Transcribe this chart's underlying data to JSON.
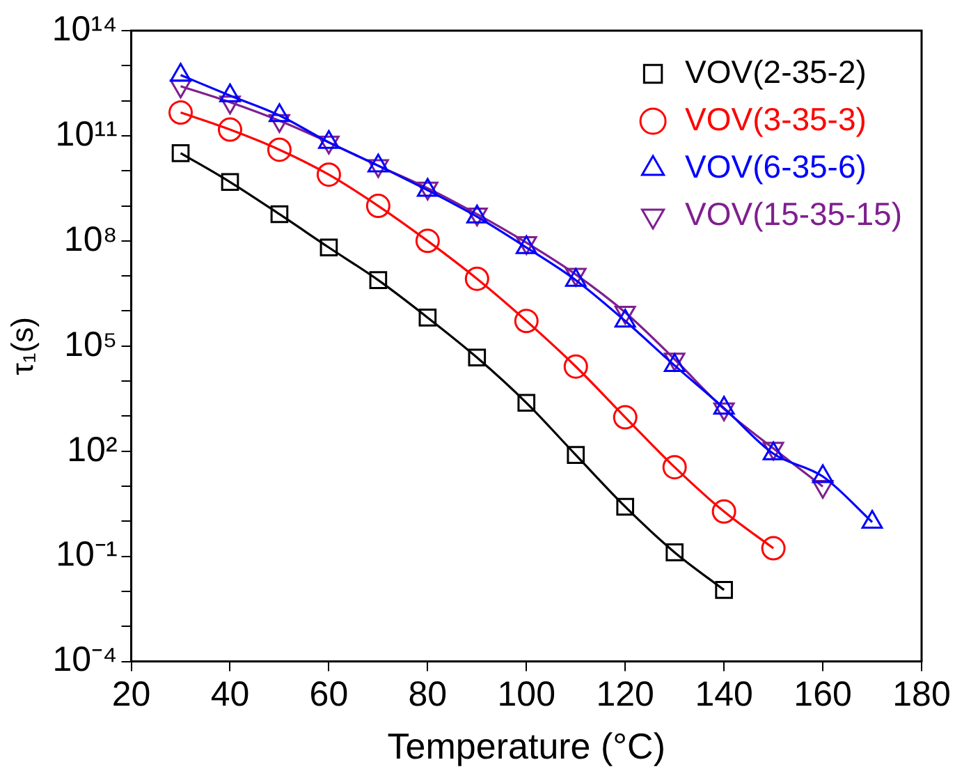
{
  "chart_data": {
    "type": "line",
    "xlabel": "Temperature (°C)",
    "ylabel": "τ₁(s)",
    "log": "y",
    "xlim": [
      20,
      180
    ],
    "xticks": [
      20,
      40,
      60,
      80,
      100,
      120,
      140,
      160,
      180
    ],
    "ylim": [
      0.0001,
      100000000000000.0
    ],
    "yticks": [
      {
        "value": 0.0001,
        "label": "10⁻⁴"
      },
      {
        "value": 0.001,
        "label": null
      },
      {
        "value": 0.01,
        "label": null
      },
      {
        "value": 0.1,
        "label": "10⁻¹"
      },
      {
        "value": 1,
        "label": null
      },
      {
        "value": 10,
        "label": null
      },
      {
        "value": 100,
        "label": "10²"
      },
      {
        "value": 1000,
        "label": null
      },
      {
        "value": 10000.0,
        "label": null
      },
      {
        "value": 100000.0,
        "label": "10⁵"
      },
      {
        "value": 1000000.0,
        "label": null
      },
      {
        "value": 10000000.0,
        "label": null
      },
      {
        "value": 100000000.0,
        "label": "10⁸"
      },
      {
        "value": 1000000000.0,
        "label": null
      },
      {
        "value": 10000000000.0,
        "label": null
      },
      {
        "value": 100000000000.0,
        "label": "10¹¹"
      },
      {
        "value": 1000000000000.0,
        "label": null
      },
      {
        "value": 10000000000000.0,
        "label": null
      },
      {
        "value": 100000000000000.0,
        "label": "10¹⁴"
      }
    ],
    "grid": false,
    "legend": "top right",
    "line_style": "solid",
    "x": [
      30,
      40,
      50,
      60,
      70,
      80,
      90,
      100,
      110,
      120,
      130,
      140,
      150,
      160,
      170
    ],
    "series": [
      {
        "name": "VOV(2-35-2)",
        "color": "#000000",
        "marker": "square",
        "x": [
          30,
          40,
          50,
          60,
          70,
          80,
          90,
          100,
          110,
          120,
          130,
          140
        ],
        "values": [
          32000000000.0,
          4800000000.0,
          580000000.0,
          65000000.0,
          7600000.0,
          650000.0,
          47000.0,
          2400,
          78,
          2.6,
          0.13,
          0.011
        ]
      },
      {
        "name": "VOV(3-35-3)",
        "color": "#ff0000",
        "marker": "circle",
        "x": [
          30,
          40,
          50,
          60,
          70,
          80,
          90,
          100,
          110,
          120,
          130,
          140,
          150
        ],
        "values": [
          460000000000.0,
          150000000000.0,
          40000000000.0,
          7800000000.0,
          1000000000.0,
          100000000.0,
          8300000.0,
          520000.0,
          26000.0,
          930,
          35,
          1.9,
          0.17
        ]
      },
      {
        "name": "VOV(6-35-6)",
        "color": "#0000ff",
        "marker": "triangle",
        "values": [
          5400000000000.0,
          1400000000000.0,
          380000000000.0,
          65000000000.0,
          14000000000.0,
          2800000000.0,
          490000000.0,
          65000000.0,
          7600000.0,
          520000.0,
          28000.0,
          1700,
          85,
          19,
          0.95
        ]
      },
      {
        "name": "VOV(15-35-15)",
        "color": "#7f1f8f",
        "marker": "triangle_down",
        "x": [
          30,
          40,
          50,
          60,
          70,
          80,
          90,
          100,
          110,
          120,
          130,
          140,
          150,
          160
        ],
        "values": [
          2600000000000.0,
          910000000000.0,
          270000000000.0,
          65000000000.0,
          14000000000.0,
          3200000000.0,
          580000000.0,
          89000000.0,
          11000000.0,
          910000.0,
          42000.0,
          1600,
          120,
          9.8
        ]
      }
    ]
  }
}
